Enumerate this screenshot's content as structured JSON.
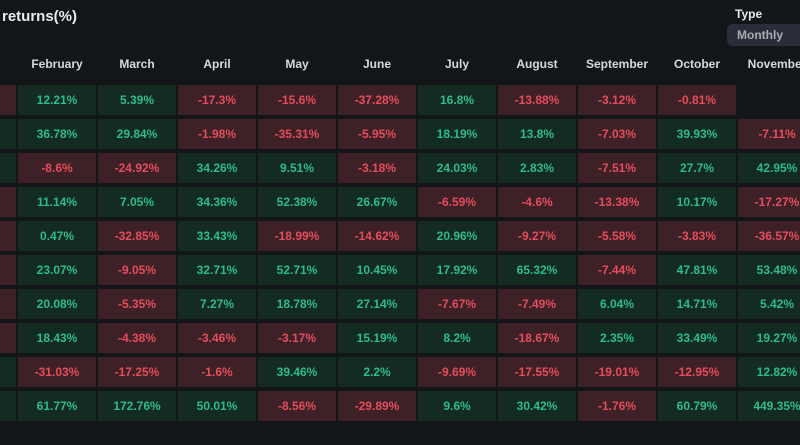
{
  "header": {
    "title": "returns(%)"
  },
  "controls": {
    "type_label": "Type",
    "type_value": "Monthly"
  },
  "colors": {
    "page_bg": "#131619",
    "positive_cell_bg": "#132b21",
    "positive_text": "#2cbd8a",
    "negative_cell_bg": "#3e2027",
    "negative_text": "#e54d5c",
    "select_bg": "#2a2e39",
    "header_text": "#d6d9dd"
  },
  "table": {
    "columns": [
      "February",
      "March",
      "April",
      "May",
      "June",
      "July",
      "August",
      "September",
      "October",
      "November"
    ],
    "cutoff_left_column_signs": [
      "neg",
      "pos",
      "pos",
      "neg",
      "neg",
      "neg",
      "neg",
      "neg",
      "pos",
      "pos"
    ],
    "rows": [
      {
        "values": [
          "12.21%",
          "5.39%",
          "-17.3%",
          "-15.6%",
          "-37.28%",
          "16.8%",
          "-13.88%",
          "-3.12%",
          "-0.81%",
          ""
        ]
      },
      {
        "values": [
          "36.78%",
          "29.84%",
          "-1.98%",
          "-35.31%",
          "-5.95%",
          "18.19%",
          "13.8%",
          "-7.03%",
          "39.93%",
          "-7.11%"
        ]
      },
      {
        "values": [
          "-8.6%",
          "-24.92%",
          "34.26%",
          "9.51%",
          "-3.18%",
          "24.03%",
          "2.83%",
          "-7.51%",
          "27.7%",
          "42.95%"
        ]
      },
      {
        "values": [
          "11.14%",
          "7.05%",
          "34.36%",
          "52.38%",
          "26.67%",
          "-6.59%",
          "-4.6%",
          "-13.38%",
          "10.17%",
          "-17.27%"
        ]
      },
      {
        "values": [
          "0.47%",
          "-32.85%",
          "33.43%",
          "-18.99%",
          "-14.62%",
          "20.96%",
          "-9.27%",
          "-5.58%",
          "-3.83%",
          "-36.57%"
        ]
      },
      {
        "values": [
          "23.07%",
          "-9.05%",
          "32.71%",
          "52.71%",
          "10.45%",
          "17.92%",
          "65.32%",
          "-7.44%",
          "47.81%",
          "53.48%"
        ]
      },
      {
        "values": [
          "20.08%",
          "-5.35%",
          "7.27%",
          "18.78%",
          "27.14%",
          "-7.67%",
          "-7.49%",
          "6.04%",
          "14.71%",
          "5.42%"
        ]
      },
      {
        "values": [
          "18.43%",
          "-4.38%",
          "-3.46%",
          "-3.17%",
          "15.19%",
          "8.2%",
          "-18.67%",
          "2.35%",
          "33.49%",
          "19.27%"
        ]
      },
      {
        "values": [
          "-31.03%",
          "-17.25%",
          "-1.6%",
          "39.46%",
          "2.2%",
          "-9.69%",
          "-17.55%",
          "-19.01%",
          "-12.95%",
          "12.82%"
        ]
      },
      {
        "values": [
          "61.77%",
          "172.76%",
          "50.01%",
          "-8.56%",
          "-29.89%",
          "9.6%",
          "30.42%",
          "-1.76%",
          "60.79%",
          "449.35%"
        ]
      }
    ]
  }
}
